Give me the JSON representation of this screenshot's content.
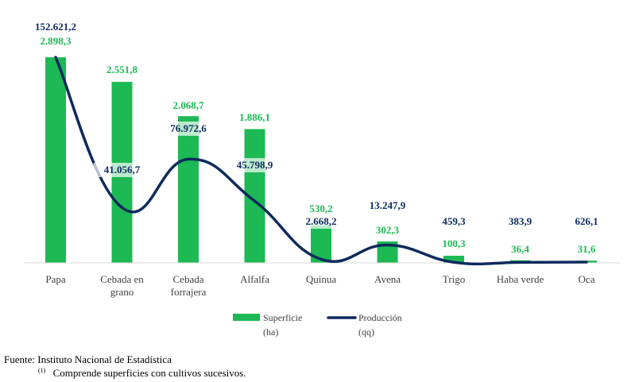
{
  "chart_data": {
    "type": "bar",
    "categories": [
      [
        "Papa"
      ],
      [
        "Cebada en",
        "grano"
      ],
      [
        "Cebada",
        "forrajera"
      ],
      [
        "Alfalfa"
      ],
      [
        "Quinua"
      ],
      [
        "Avena"
      ],
      [
        "Trigo"
      ],
      [
        "Haba verde"
      ],
      [
        "Oca"
      ]
    ],
    "series": [
      {
        "name": "Superficie",
        "unit": "(ha)",
        "kind": "bar",
        "color": "#1db954",
        "values": [
          2898.3,
          2551.8,
          2068.7,
          1886.1,
          530.2,
          302.3,
          100.3,
          36.4,
          31.6
        ],
        "labels": [
          "2.898,3",
          "2.551,8",
          "2.068,7",
          "1.886,1",
          "530,2",
          "302,3",
          "100,3",
          "36,4",
          "31,6"
        ]
      },
      {
        "name": "Producción",
        "unit": "(qq)",
        "kind": "line",
        "color": "#0d2a5c",
        "values": [
          152621.2,
          41056.7,
          76972.6,
          45798.9,
          2668.2,
          13247.9,
          459.3,
          383.9,
          626.1
        ],
        "labels": [
          "152.621,2",
          "41.056,7",
          "76.972,6",
          "45.798,9",
          "2.668,2",
          "13.247,9",
          "459,3",
          "383,9",
          "626,1"
        ]
      }
    ],
    "title": "",
    "xlabel": "",
    "ylabel": "",
    "ylim_bar": [
      0,
      2900
    ],
    "ylim_line": [
      0,
      155000
    ],
    "grid": false,
    "legend_position": "bottom"
  },
  "footer": {
    "source": "Fuente: Instituto Nacional de Estadística",
    "note_marker": "(1)",
    "note": "Comprende superficies con cultivos sucesivos."
  }
}
